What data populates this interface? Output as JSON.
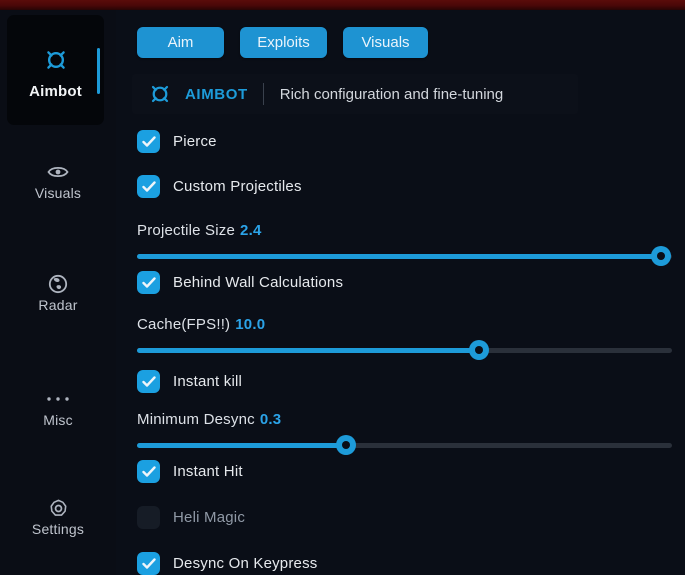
{
  "colors": {
    "accent": "#1d9bd9",
    "value_blue": "#2ba3e8",
    "top_strip_red": "#4a0808",
    "background": "#0a0e17"
  },
  "sidebar": {
    "items": [
      {
        "label": "Aimbot",
        "icon": "crosshair-icon",
        "active": true
      },
      {
        "label": "Visuals",
        "icon": "eye-icon",
        "active": false
      },
      {
        "label": "Radar",
        "icon": "globe-icon",
        "active": false
      },
      {
        "label": "Misc",
        "icon": "ellipsis-icon",
        "active": false
      },
      {
        "label": "Settings",
        "icon": "gear-icon",
        "active": false
      }
    ]
  },
  "tabs": [
    {
      "label": "Aim"
    },
    {
      "label": "Exploits"
    },
    {
      "label": "Visuals"
    }
  ],
  "header": {
    "title": "AIMBOT",
    "subtitle": "Rich configuration and fine-tuning"
  },
  "controls": [
    {
      "type": "checkbox",
      "label": "Pierce",
      "checked": true
    },
    {
      "type": "checkbox",
      "label": "Custom Projectiles",
      "checked": true
    },
    {
      "type": "slider",
      "label": "Projectile Size",
      "value": "2.4",
      "fill_pct": 98
    },
    {
      "type": "checkbox",
      "label": "Behind Wall Calculations",
      "checked": true
    },
    {
      "type": "slider",
      "label": "Cache(FPS!!)",
      "value": "10.0",
      "fill_pct": 64
    },
    {
      "type": "checkbox",
      "label": "Instant kill",
      "checked": true
    },
    {
      "type": "slider",
      "label": "Minimum Desync",
      "value": "0.3",
      "fill_pct": 39
    },
    {
      "type": "checkbox",
      "label": "Instant Hit",
      "checked": true
    },
    {
      "type": "checkbox",
      "label": "Heli Magic",
      "checked": false
    },
    {
      "type": "checkbox",
      "label": "Desync On Keypress",
      "checked": true
    }
  ]
}
